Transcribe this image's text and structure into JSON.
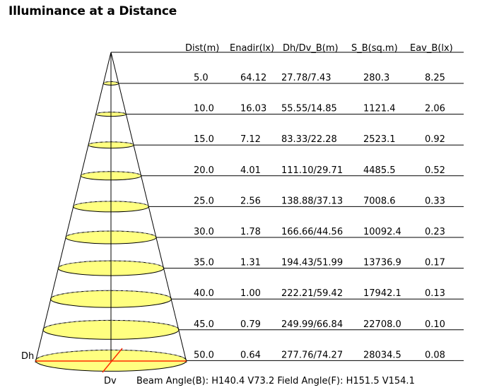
{
  "title": "Illuminance at a Distance",
  "columns": [
    "Dist(m)",
    "Enadir(lx)",
    "Dh/Dv_B(m)",
    "S_B(sq.m)",
    "Eav_B(lx)"
  ],
  "rows": [
    {
      "dist": "5.0",
      "enadir": "64.12",
      "dhdv": "27.78/7.43",
      "sb": "280.3",
      "eav": "8.25"
    },
    {
      "dist": "10.0",
      "enadir": "16.03",
      "dhdv": "55.55/14.85",
      "sb": "1121.4",
      "eav": "2.06"
    },
    {
      "dist": "15.0",
      "enadir": "7.12",
      "dhdv": "83.33/22.28",
      "sb": "2523.1",
      "eav": "0.92"
    },
    {
      "dist": "20.0",
      "enadir": "4.01",
      "dhdv": "111.10/29.71",
      "sb": "4485.5",
      "eav": "0.52"
    },
    {
      "dist": "25.0",
      "enadir": "2.56",
      "dhdv": "138.88/37.13",
      "sb": "7008.6",
      "eav": "0.33"
    },
    {
      "dist": "30.0",
      "enadir": "1.78",
      "dhdv": "166.66/44.56",
      "sb": "10092.4",
      "eav": "0.23"
    },
    {
      "dist": "35.0",
      "enadir": "1.31",
      "dhdv": "194.43/51.99",
      "sb": "13736.9",
      "eav": "0.17"
    },
    {
      "dist": "40.0",
      "enadir": "1.00",
      "dhdv": "222.21/59.42",
      "sb": "17942.1",
      "eav": "0.13"
    },
    {
      "dist": "45.0",
      "enadir": "0.79",
      "dhdv": "249.99/66.84",
      "sb": "22708.0",
      "eav": "0.10"
    },
    {
      "dist": "50.0",
      "enadir": "0.64",
      "dhdv": "277.76/74.27",
      "sb": "28034.5",
      "eav": "0.08"
    }
  ],
  "labels": {
    "dh": "Dh",
    "dv": "Dv"
  },
  "footer": "Beam Angle(B): H140.4 V73.2  Field Angle(F): H151.5 V154.1",
  "colors": {
    "beam_fill": "#ffff80",
    "beam_line": "#000000",
    "dh_dv_marker": "#ff2a00"
  }
}
